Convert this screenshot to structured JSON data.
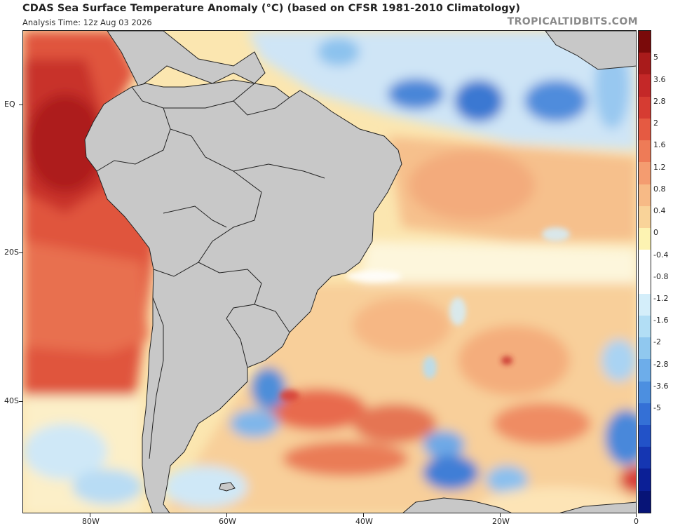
{
  "header": {
    "title": "CDAS Sea Surface Temperature Anomaly (°C) (based on CFSR 1981-2010 Climatology)",
    "subtitle": "Analysis Time: 12z Aug 03 2026",
    "watermark": "TROPICALTIDBITS.COM"
  },
  "map": {
    "lat_labels": [
      "EQ",
      "20S",
      "40S"
    ],
    "lon_labels": [
      "80W",
      "60W",
      "40W",
      "20W",
      "0"
    ],
    "land_color": "#c8c8c8",
    "border_color": "#222222"
  },
  "colorbar": {
    "labels": [
      "5",
      "3.6",
      "2.8",
      "2",
      "1.6",
      "1.2",
      "0.8",
      "0.4",
      "0",
      "-0.4",
      "-0.8",
      "-1.2",
      "-1.6",
      "-2",
      "-2.8",
      "-3.6",
      "-5"
    ],
    "colors": [
      "#7a0a0a",
      "#a91b1b",
      "#c42828",
      "#d63c32",
      "#e55a42",
      "#ee7b57",
      "#f49c70",
      "#f7ba86",
      "#f9d399",
      "#fdf3b2",
      "#ffffff",
      "#ffffff",
      "#d4eefa",
      "#b2def5",
      "#90c8ef",
      "#6dadea",
      "#4c8fe0",
      "#3470d6",
      "#2252c8",
      "#1536b2",
      "#0b1f96",
      "#071477"
    ]
  }
}
